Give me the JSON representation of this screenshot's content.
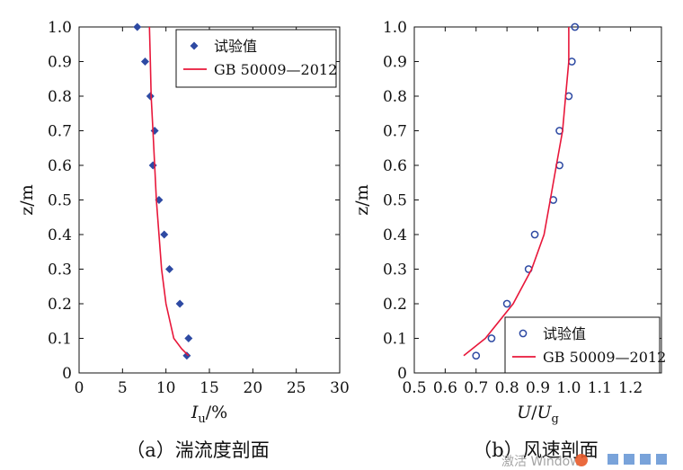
{
  "chart_data": [
    {
      "type": "scatter",
      "panel": "a",
      "caption": "（a）湍流度剖面",
      "xlabel_main": "I",
      "xlabel_sub": "u",
      "xlabel_unit": "/%",
      "ylabel": "z/m",
      "xlim": [
        0,
        30
      ],
      "ylim": [
        0,
        1.0
      ],
      "xticks": [
        0,
        5,
        10,
        15,
        20,
        25,
        30
      ],
      "yticks": [
        0,
        0.1,
        0.2,
        0.3,
        0.4,
        0.5,
        0.6,
        0.7,
        0.8,
        0.9,
        1.0
      ],
      "xtick_labels": [
        "0",
        "5",
        "10",
        "15",
        "20",
        "25",
        "30"
      ],
      "ytick_labels": [
        "0",
        "0.1",
        "0.2",
        "0.3",
        "0.4",
        "0.5",
        "0.6",
        "0.7",
        "0.8",
        "0.9",
        "1.0"
      ],
      "legend_position": "top-right",
      "series": [
        {
          "name": "试验值",
          "kind": "marker",
          "marker": "diamond",
          "color": "#2e4aa3",
          "x": [
            6.7,
            7.6,
            8.2,
            8.7,
            8.5,
            9.2,
            9.8,
            10.4,
            11.6,
            12.6,
            12.4
          ],
          "y": [
            1.0,
            0.9,
            0.8,
            0.7,
            0.6,
            0.5,
            0.4,
            0.3,
            0.2,
            0.1,
            0.05
          ]
        },
        {
          "name": "GB 50009—2012",
          "kind": "line",
          "color": "#e8173a",
          "x": [
            8.1,
            8.2,
            8.3,
            8.5,
            8.7,
            8.9,
            9.2,
            9.5,
            10.0,
            10.9,
            11.8,
            12.6
          ],
          "y": [
            1.0,
            0.9,
            0.8,
            0.7,
            0.6,
            0.5,
            0.4,
            0.3,
            0.2,
            0.1,
            0.07,
            0.05
          ]
        }
      ]
    },
    {
      "type": "scatter",
      "panel": "b",
      "caption": "（b）风速剖面",
      "xlabel_main": "U",
      "xlabel_sep": "/",
      "xlabel_main2": "U",
      "xlabel_sub": "g",
      "ylabel": "z/m",
      "xlim": [
        0.5,
        1.3
      ],
      "ylim": [
        0,
        1.0
      ],
      "xticks": [
        0.5,
        0.6,
        0.7,
        0.8,
        0.9,
        1.0,
        1.1,
        1.2
      ],
      "yticks": [
        0,
        0.1,
        0.2,
        0.3,
        0.4,
        0.5,
        0.6,
        0.7,
        0.8,
        0.9,
        1.0
      ],
      "xtick_labels": [
        "0.5",
        "0.6",
        "0.7",
        "0.8",
        "0.9",
        "1.0",
        "1.1",
        "1.2"
      ],
      "ytick_labels": [
        "0",
        "0.1",
        "0.2",
        "0.3",
        "0.4",
        "0.5",
        "0.6",
        "0.7",
        "0.8",
        "0.9",
        "1.0"
      ],
      "legend_position": "bottom-right",
      "series": [
        {
          "name": "试验值",
          "kind": "marker",
          "marker": "circle",
          "color": "#2e4aa3",
          "x": [
            1.02,
            1.01,
            1.0,
            0.97,
            0.97,
            0.95,
            0.89,
            0.87,
            0.8,
            0.75,
            0.7
          ],
          "y": [
            1.0,
            0.9,
            0.8,
            0.7,
            0.6,
            0.5,
            0.4,
            0.3,
            0.2,
            0.1,
            0.05
          ]
        },
        {
          "name": "GB 50009—2012",
          "kind": "line",
          "color": "#e8173a",
          "x": [
            1.0,
            1.0,
            0.99,
            0.98,
            0.96,
            0.94,
            0.92,
            0.88,
            0.82,
            0.73,
            0.66
          ],
          "y": [
            1.0,
            0.9,
            0.8,
            0.7,
            0.6,
            0.5,
            0.4,
            0.3,
            0.2,
            0.1,
            0.05
          ]
        }
      ]
    }
  ],
  "watermark": {
    "text": "激活 Windows"
  }
}
